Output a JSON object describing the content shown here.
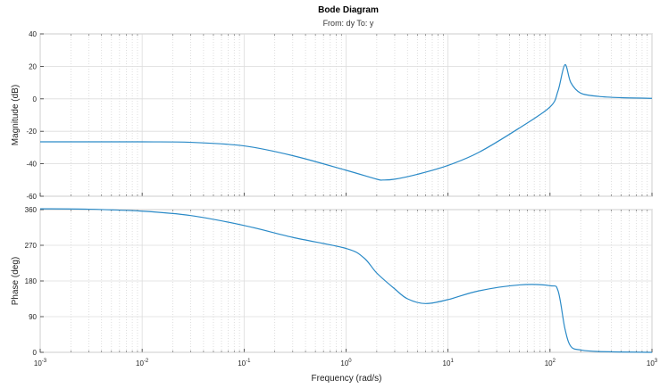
{
  "chart_data": {
    "type": "line",
    "title": "Bode Diagram",
    "subtitle": "From: dy  To: y",
    "xlabel": "Frequency  (rad/s)",
    "x_scale": "log",
    "xlim": [
      0.001,
      1000
    ],
    "x_ticks": [
      {
        "value": 0.001,
        "base": "10",
        "exp": "-3"
      },
      {
        "value": 0.01,
        "base": "10",
        "exp": "-2"
      },
      {
        "value": 0.1,
        "base": "10",
        "exp": "-1"
      },
      {
        "value": 1,
        "base": "10",
        "exp": "0"
      },
      {
        "value": 10,
        "base": "10",
        "exp": "1"
      },
      {
        "value": 100,
        "base": "10",
        "exp": "2"
      },
      {
        "value": 1000,
        "base": "10",
        "exp": "3"
      }
    ],
    "grid": true,
    "line_color": "#2a8ac7",
    "panels": [
      {
        "ylabel": "Magnitude (dB)",
        "ylim": [
          -60,
          40
        ],
        "y_ticks": [
          -60,
          -40,
          -20,
          0,
          20,
          40
        ],
        "y_tick_labels": [
          "-60",
          "-40",
          "-20",
          "0",
          "20",
          "40"
        ],
        "x": [
          0.001,
          0.01,
          0.03,
          0.1,
          0.3,
          1,
          2,
          2.3,
          3,
          5,
          10,
          20,
          50,
          100,
          120,
          140,
          160,
          200,
          300,
          500,
          1000
        ],
        "y": [
          -26.5,
          -26.5,
          -26.8,
          -29,
          -35,
          -44,
          -49.5,
          -50,
          -49.5,
          -46.5,
          -41,
          -33,
          -18,
          -5,
          5,
          21,
          10,
          3.5,
          1.5,
          0.7,
          0.3
        ]
      },
      {
        "ylabel": "Phase (deg)",
        "ylim": [
          0,
          360
        ],
        "y_ticks": [
          0,
          90,
          180,
          270,
          360
        ],
        "y_tick_labels": [
          "0",
          "90",
          "180",
          "270",
          "360"
        ],
        "x": [
          0.001,
          0.003,
          0.01,
          0.03,
          0.1,
          0.3,
          1,
          1.5,
          2,
          3,
          4,
          6,
          10,
          20,
          50,
          100,
          120,
          140,
          160,
          200,
          300,
          1000
        ],
        "y": [
          362,
          361,
          356,
          345,
          320,
          290,
          262,
          238,
          200,
          160,
          135,
          123,
          133,
          155,
          170,
          168,
          155,
          60,
          15,
          6,
          2,
          0
        ]
      }
    ]
  }
}
